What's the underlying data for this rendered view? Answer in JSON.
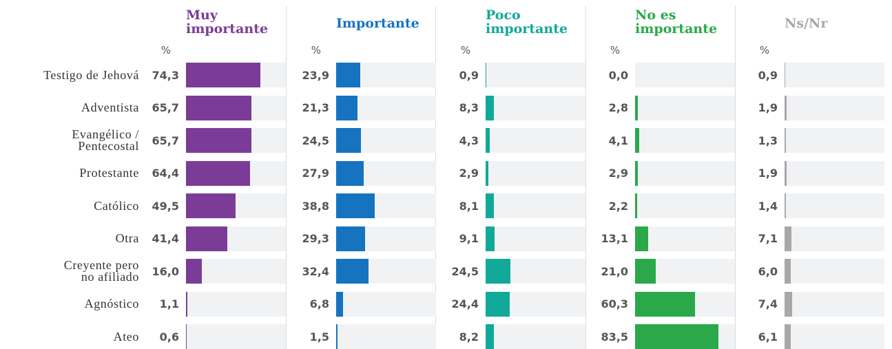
{
  "chart_data": {
    "type": "bar",
    "orientation": "horizontal",
    "unit_label": "%",
    "xlim": [
      0,
      100
    ],
    "categories": [
      "Testigo de Jehová",
      "Adventista",
      "Evangélico /\nPentecostal",
      "Protestante",
      "Católico",
      "Otra",
      "Creyente pero\nno afiliado",
      "Agnóstico",
      "Ateo"
    ],
    "series": [
      {
        "name": "Muy\nimportante",
        "color": "#7b3c98",
        "values": [
          74.3,
          65.7,
          65.7,
          64.4,
          49.5,
          41.4,
          16.0,
          1.1,
          0.6
        ],
        "value_labels": [
          "74,3",
          "65,7",
          "65,7",
          "64,4",
          "49,5",
          "41,4",
          "16,0",
          "1,1",
          "0,6"
        ]
      },
      {
        "name": "Importante",
        "color": "#1673c0",
        "values": [
          23.9,
          21.3,
          24.5,
          27.9,
          38.8,
          29.3,
          32.4,
          6.8,
          1.5
        ],
        "value_labels": [
          "23,9",
          "21,3",
          "24,5",
          "27,9",
          "38,8",
          "29,3",
          "32,4",
          "6,8",
          "1,5"
        ]
      },
      {
        "name": "Poco\nimportante",
        "color": "#12a89a",
        "values": [
          0.9,
          8.3,
          4.3,
          2.9,
          8.1,
          9.1,
          24.5,
          24.4,
          8.2
        ],
        "value_labels": [
          "0,9",
          "8,3",
          "4,3",
          "2,9",
          "8,1",
          "9,1",
          "24,5",
          "24,4",
          "8,2"
        ]
      },
      {
        "name": "No es\nimportante",
        "color": "#2aa84a",
        "values": [
          0.0,
          2.8,
          4.1,
          2.9,
          2.2,
          13.1,
          21.0,
          60.3,
          83.5
        ],
        "value_labels": [
          "0,0",
          "2,8",
          "4,1",
          "2,9",
          "2,2",
          "13,1",
          "21,0",
          "60,3",
          "83,5"
        ]
      },
      {
        "name": "Ns/Nr",
        "color": "#a8a8a8",
        "values": [
          0.9,
          1.9,
          1.3,
          1.9,
          1.4,
          7.1,
          6.0,
          7.4,
          6.1
        ],
        "value_labels": [
          "0,9",
          "1,9",
          "1,3",
          "1,9",
          "1,4",
          "7,1",
          "6,0",
          "7,4",
          "6,1"
        ]
      }
    ]
  }
}
